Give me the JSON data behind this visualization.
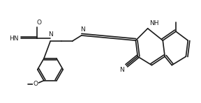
{
  "bg_color": "#ffffff",
  "line_color": "#1a1a1a",
  "lw": 1.2,
  "atoms": {
    "O": "O",
    "H": "H",
    "N": "N",
    "C": "C"
  }
}
